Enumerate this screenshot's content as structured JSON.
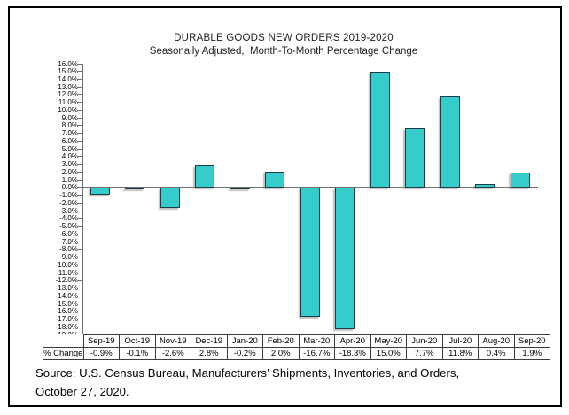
{
  "chart_data": {
    "type": "bar",
    "title": "DURABLE GOODS NEW ORDERS 2019-2020",
    "subtitle": "Seasonally Adjusted,  Month-To-Month Percentage Change",
    "categories": [
      "Sep-19",
      "Oct-19",
      "Nov-19",
      "Dec-19",
      "Jan-20",
      "Feb-20",
      "Mar-20",
      "Apr-20",
      "May-20",
      "Jun-20",
      "Jul-20",
      "Aug-20",
      "Sep-20"
    ],
    "values": [
      -0.9,
      -0.1,
      -2.6,
      2.8,
      -0.2,
      2.0,
      -16.7,
      -18.3,
      15.0,
      7.7,
      11.8,
      0.4,
      1.9
    ],
    "value_labels": [
      "-0.9%",
      "-0.1%",
      "-2.6%",
      "2.8%",
      "-0.2%",
      "2.0%",
      "-16.7%",
      "-18.3%",
      "15.0%",
      "7.7%",
      "11.8%",
      "0.4%",
      "1.9%"
    ],
    "table_row_label": "% Change",
    "ylim": [
      -19,
      16
    ],
    "ytick_step": 1,
    "ytick_labels": [
      "16.0%",
      "15.0%",
      "14.0%",
      "13.0%",
      "12.0%",
      "11.0%",
      "10.0%",
      "9.0%",
      "8.0%",
      "7.0%",
      "6.0%",
      "5.0%",
      "4.0%",
      "3.0%",
      "2.0%",
      "1.0%",
      "0.0%",
      "-1.0%",
      "-2.0%",
      "-3.0%",
      "-4.0%",
      "-5.0%",
      "-6.0%",
      "-7.0%",
      "-8.0%",
      "-9.0%",
      "-10.0%",
      "-11.0%",
      "-12.0%",
      "-13.0%",
      "-14.0%",
      "-15.0%",
      "-16.0%",
      "-17.0%",
      "-18.0%",
      "-19.0%"
    ],
    "grid": false,
    "legend_position": "none",
    "bar_color": "#35cccc",
    "bar_border_color": "#1e3c46",
    "axis_color": "#6f6f6f"
  },
  "source": {
    "line1": "Source: U.S. Census Bureau, Manufacturers’ Shipments, Inventories, and Orders,",
    "line2": "October 27, 2020."
  }
}
